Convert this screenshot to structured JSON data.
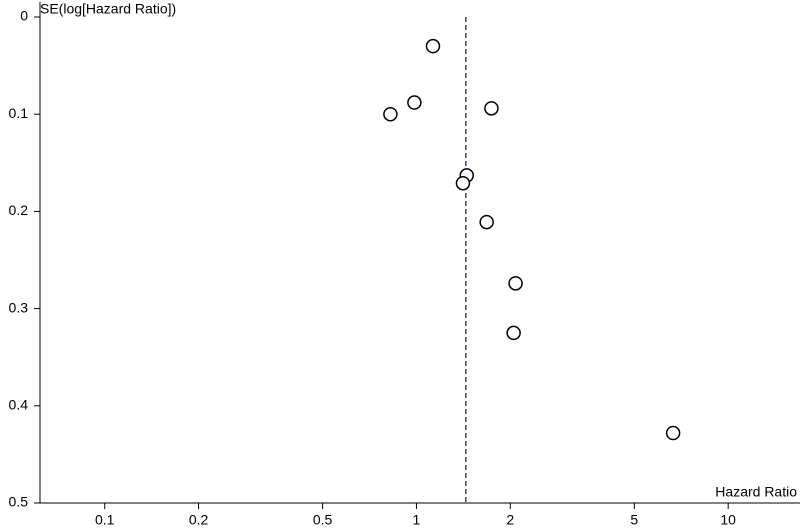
{
  "chart_data": {
    "type": "scatter",
    "y_label": "SE(log[Hazard Ratio])",
    "x_label": "Hazard Ratio",
    "x": [
      1.13,
      0.985,
      0.825,
      1.74,
      1.45,
      1.41,
      1.68,
      2.08,
      2.05,
      6.66
    ],
    "values": [
      0.03,
      0.088,
      0.1,
      0.094,
      0.163,
      0.171,
      0.211,
      0.274,
      0.325,
      0.428
    ],
    "marker_color": "#000000",
    "reference_line": 1.44,
    "reference_color": "#3a3ab0",
    "xscale": "log",
    "y_inverted": true,
    "xlim": [
      0.062,
      17
    ],
    "ylim": [
      0,
      0.5
    ],
    "xticks": [
      0.1,
      0.2,
      0.5,
      1,
      2,
      5,
      10
    ],
    "yticks": [
      0,
      0.1,
      0.2,
      0.3,
      0.4,
      0.5
    ]
  }
}
